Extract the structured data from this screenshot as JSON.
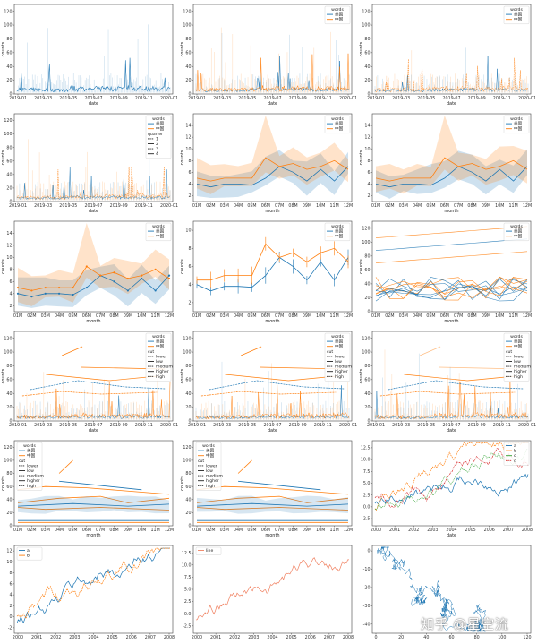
{
  "colors": {
    "blue": "#1f77b4",
    "orange": "#ff7f0e",
    "green": "#2ca02c",
    "red": "#d62728",
    "salmon": "#f08060"
  },
  "watermark": "知乎 @星空流",
  "chart_data": [
    {
      "type": "line",
      "xlabel": "date",
      "ylabel": "counts",
      "xticks": [
        "2019-01",
        "2019-03",
        "2019-05",
        "2019-07",
        "2019-09",
        "2019-11",
        "2020-01"
      ],
      "yticks": [
        "0",
        "20",
        "40",
        "60",
        "80",
        "100",
        "120"
      ],
      "ylim": [
        0,
        130
      ],
      "legend": null,
      "style": "daily-single"
    },
    {
      "type": "line",
      "xlabel": "date",
      "ylabel": "counts",
      "xticks": [
        "2019-01",
        "2019-03",
        "2019-05",
        "2019-07",
        "2019-09",
        "2019-11",
        "2020-01"
      ],
      "yticks": [
        "0",
        "20",
        "40",
        "60",
        "80",
        "100",
        "120"
      ],
      "ylim": [
        0,
        130
      ],
      "legend": {
        "title": "words",
        "items": [
          "美国",
          "中国"
        ]
      },
      "style": "daily-two"
    },
    {
      "type": "line",
      "xlabel": "date",
      "ylabel": "counts",
      "xticks": [
        "2019-01",
        "2019-03",
        "2019-05",
        "2019-07",
        "2019-09",
        "2019-11",
        "2020-01"
      ],
      "yticks": [
        "0",
        "20",
        "40",
        "60",
        "80",
        "100",
        "120"
      ],
      "ylim": [
        0,
        130
      ],
      "legend": {
        "title": "words",
        "items": [
          "美国",
          "中国"
        ]
      },
      "style": "daily-two-dashed"
    },
    {
      "type": "line",
      "xlabel": "date",
      "ylabel": "counts",
      "xticks": [
        "2019-01",
        "2019-03",
        "2019-05",
        "2019-07",
        "2019-09",
        "2019-11",
        "2020-01"
      ],
      "yticks": [
        "0",
        "20",
        "40",
        "60",
        "80",
        "100",
        "120"
      ],
      "ylim": [
        0,
        130
      ],
      "legend": {
        "title": "words",
        "items": [
          "美国",
          "中国",
          "quarter",
          "1",
          "2",
          "3",
          "4"
        ]
      },
      "style": "daily-quarter"
    },
    {
      "type": "line",
      "xlabel": "month",
      "ylabel": "counts",
      "categories": [
        "01M",
        "02M",
        "03M",
        "04M",
        "05M",
        "06M",
        "07M",
        "08M",
        "09M",
        "10M",
        "11M",
        "12M"
      ],
      "yticks": [
        "2",
        "4",
        "6",
        "8",
        "10",
        "12",
        "14"
      ],
      "ylim": [
        1,
        16
      ],
      "legend": {
        "title": "words",
        "items": [
          "美国",
          "中国"
        ]
      },
      "series": [
        {
          "name": "美国",
          "values": [
            4.0,
            3.5,
            4.0,
            4.0,
            3.8,
            5.0,
            7.0,
            6.0,
            4.5,
            6.5,
            4.5,
            7.0
          ]
        },
        {
          "name": "中国",
          "values": [
            5.0,
            4.5,
            5.0,
            5.0,
            5.0,
            8.5,
            7.0,
            7.5,
            6.5,
            7.0,
            8.0,
            6.5
          ]
        }
      ],
      "band": true
    },
    {
      "type": "line",
      "xlabel": "month",
      "ylabel": "counts",
      "categories": [
        "01M",
        "02M",
        "03M",
        "04M",
        "05M",
        "06M",
        "07M",
        "08M",
        "09M",
        "10M",
        "11M",
        "12M"
      ],
      "yticks": [
        "2",
        "4",
        "6",
        "8",
        "10",
        "12",
        "14"
      ],
      "ylim": [
        1,
        16
      ],
      "legend": {
        "title": "words",
        "items": [
          "美国",
          "中国"
        ]
      },
      "series": [
        {
          "name": "美国",
          "values": [
            4.0,
            3.5,
            4.0,
            4.0,
            3.8,
            5.0,
            7.0,
            6.0,
            4.5,
            6.5,
            4.5,
            7.0
          ]
        },
        {
          "name": "中国",
          "values": [
            5.0,
            4.5,
            5.0,
            5.0,
            5.0,
            8.5,
            7.0,
            7.5,
            6.5,
            7.0,
            8.0,
            6.5
          ]
        }
      ],
      "band": true
    },
    {
      "type": "line",
      "xlabel": "month",
      "ylabel": "counts",
      "categories": [
        "01M",
        "02M",
        "03M",
        "04M",
        "05M",
        "06M",
        "07M",
        "08M",
        "09M",
        "10M",
        "11M",
        "12M"
      ],
      "yticks": [
        "2",
        "4",
        "6",
        "8",
        "10",
        "12",
        "14"
      ],
      "ylim": [
        1,
        16
      ],
      "legend": {
        "title": "words",
        "items": [
          "美国",
          "中国"
        ]
      },
      "series": [
        {
          "name": "美国",
          "values": [
            4.0,
            3.5,
            4.0,
            4.0,
            3.8,
            5.0,
            7.0,
            6.0,
            4.5,
            6.5,
            4.5,
            7.0
          ]
        },
        {
          "name": "中国",
          "values": [
            5.0,
            4.5,
            5.0,
            5.0,
            5.0,
            8.5,
            7.0,
            7.5,
            6.5,
            7.0,
            8.0,
            6.5
          ]
        }
      ],
      "band": true,
      "markers": true
    },
    {
      "type": "line",
      "xlabel": "month",
      "ylabel": "counts",
      "categories": [
        "01M",
        "02M",
        "03M",
        "04M",
        "05M",
        "06M",
        "07M",
        "08M",
        "09M",
        "10M",
        "11M",
        "12M"
      ],
      "yticks": [
        "2",
        "4",
        "6",
        "8",
        "10"
      ],
      "ylim": [
        1,
        11
      ],
      "legend": {
        "title": "words",
        "items": [
          "美国",
          "中国"
        ]
      },
      "series": [
        {
          "name": "美国",
          "values": [
            4.0,
            3.3,
            3.8,
            3.8,
            3.7,
            5.0,
            7.0,
            6.0,
            4.5,
            6.5,
            4.5,
            7.0
          ]
        },
        {
          "name": "中国",
          "values": [
            4.5,
            4.5,
            5.0,
            5.0,
            5.0,
            8.5,
            7.0,
            7.5,
            6.5,
            7.5,
            8.0,
            6.5
          ]
        }
      ],
      "errorbars": true
    },
    {
      "type": "line",
      "xlabel": "month",
      "ylabel": "counts",
      "categories": [
        "01M",
        "02M",
        "03M",
        "04M",
        "05M",
        "06M",
        "07M",
        "08M",
        "09M",
        "10M",
        "11M",
        "12M"
      ],
      "yticks": [
        "0",
        "20",
        "40",
        "60",
        "80",
        "100",
        "120"
      ],
      "ylim": [
        0,
        130
      ],
      "legend": {
        "title": "words",
        "items": [
          "美国",
          "中国"
        ]
      },
      "style": "tangle"
    },
    {
      "type": "line",
      "xlabel": "date",
      "ylabel": "counts",
      "xticks": [
        "2019-01",
        "2019-03",
        "2019-05",
        "2019-07",
        "2019-09",
        "2019-11",
        "2020-01"
      ],
      "yticks": [
        "0",
        "20",
        "40",
        "60",
        "80",
        "100",
        "120"
      ],
      "ylim": [
        0,
        130
      ],
      "legend": {
        "title": "words",
        "items": [
          "美国",
          "中国",
          "cut",
          "lower",
          "low",
          "medium",
          "higher",
          "high"
        ]
      },
      "style": "daily-cut"
    },
    {
      "type": "line",
      "xlabel": "date",
      "ylabel": "counts",
      "xticks": [
        "2019-01",
        "2019-03",
        "2019-05",
        "2019-07",
        "2019-09",
        "2019-11",
        "2020-01"
      ],
      "yticks": [
        "0",
        "20",
        "40",
        "60",
        "80",
        "100",
        "120"
      ],
      "ylim": [
        0,
        130
      ],
      "legend": {
        "title": "words",
        "items": [
          "美国",
          "中国",
          "cut",
          "lower",
          "low",
          "medium",
          "higher",
          "high"
        ]
      },
      "style": "daily-cut"
    },
    {
      "type": "line",
      "xlabel": "date",
      "ylabel": "counts",
      "xticks": [
        "2019-01",
        "2019-03",
        "2019-05",
        "2019-07",
        "2019-09",
        "2019-11",
        "2020-01"
      ],
      "yticks": [
        "0",
        "20",
        "40",
        "60",
        "80",
        "100",
        "120"
      ],
      "ylim": [
        0,
        130
      ],
      "legend": {
        "title": "words",
        "items": [
          "美国",
          "中国",
          "cut",
          "lower",
          "low",
          "medium",
          "higher",
          "high"
        ]
      },
      "style": "daily-cut-light"
    },
    {
      "type": "line",
      "xlabel": "month",
      "ylabel": "counts",
      "categories": [
        "01M",
        "02M",
        "03M",
        "04M",
        "05M",
        "06M",
        "07M",
        "08M",
        "09M",
        "10M",
        "11M",
        "12M"
      ],
      "yticks": [
        "0",
        "20",
        "40",
        "60",
        "80",
        "100",
        "120"
      ],
      "ylim": [
        0,
        130
      ],
      "legend": {
        "title": "words",
        "items": [
          "美国",
          "中国",
          "cut",
          "lower",
          "low",
          "medium",
          "higher",
          "high"
        ]
      },
      "style": "monthly-cut"
    },
    {
      "type": "line",
      "xlabel": "month",
      "ylabel": "counts",
      "categories": [
        "01M",
        "02M",
        "03M",
        "04M",
        "05M",
        "06M",
        "07M",
        "08M",
        "09M",
        "10M",
        "11M",
        "12M"
      ],
      "yticks": [
        "0",
        "20",
        "40",
        "60",
        "80",
        "100",
        "120"
      ],
      "ylim": [
        0,
        130
      ],
      "legend": {
        "title": "words",
        "items": [
          "美国",
          "中国",
          "cut",
          "lower",
          "low",
          "medium",
          "higher",
          "high"
        ]
      },
      "style": "monthly-cut"
    },
    {
      "type": "line",
      "xlabel": "date",
      "ylabel": "",
      "xticks": [
        "2000",
        "2001",
        "2002",
        "2003",
        "2004",
        "2005",
        "2006",
        "2007",
        "2008"
      ],
      "yticks": [
        "-2.5",
        "0.0",
        "2.5",
        "5.0",
        "7.5",
        "10.0",
        "12.5"
      ],
      "ylim": [
        -4,
        14
      ],
      "legend": {
        "title": "",
        "items": [
          "a",
          "b",
          "c",
          "d"
        ]
      },
      "style": "walk4"
    },
    {
      "type": "line",
      "xlabel": "",
      "ylabel": "",
      "xticks": [
        "2000",
        "2001",
        "2002",
        "2003",
        "2004",
        "2005",
        "2006",
        "2007",
        "2008"
      ],
      "yticks": [
        "-2",
        "0",
        "2",
        "4",
        "6",
        "8",
        "10",
        "12"
      ],
      "ylim": [
        -3,
        13
      ],
      "legend": {
        "title": "",
        "items": [
          "a",
          "b"
        ]
      },
      "style": "walk2"
    },
    {
      "type": "line",
      "xlabel": "",
      "ylabel": "",
      "xticks": [
        "2000",
        "2001",
        "2002",
        "2003",
        "2004",
        "2005",
        "2006",
        "2007",
        "2008"
      ],
      "yticks": [
        "-2.5",
        "0.0",
        "2.5",
        "5.0",
        "7.5",
        "10.0",
        "12.5"
      ],
      "ylim": [
        -4,
        14
      ],
      "legend": {
        "title": "",
        "items": [
          "line"
        ]
      },
      "style": "walk1"
    },
    {
      "type": "scatter",
      "xlabel": "",
      "ylabel": "",
      "xticks": [
        "0",
        "20",
        "40",
        "60",
        "80",
        "100",
        "120"
      ],
      "yticks": [
        "-40",
        "-30",
        "-20",
        "-10",
        "0"
      ],
      "ylim": [
        -45,
        3
      ],
      "legend": null,
      "style": "walk2d"
    }
  ]
}
